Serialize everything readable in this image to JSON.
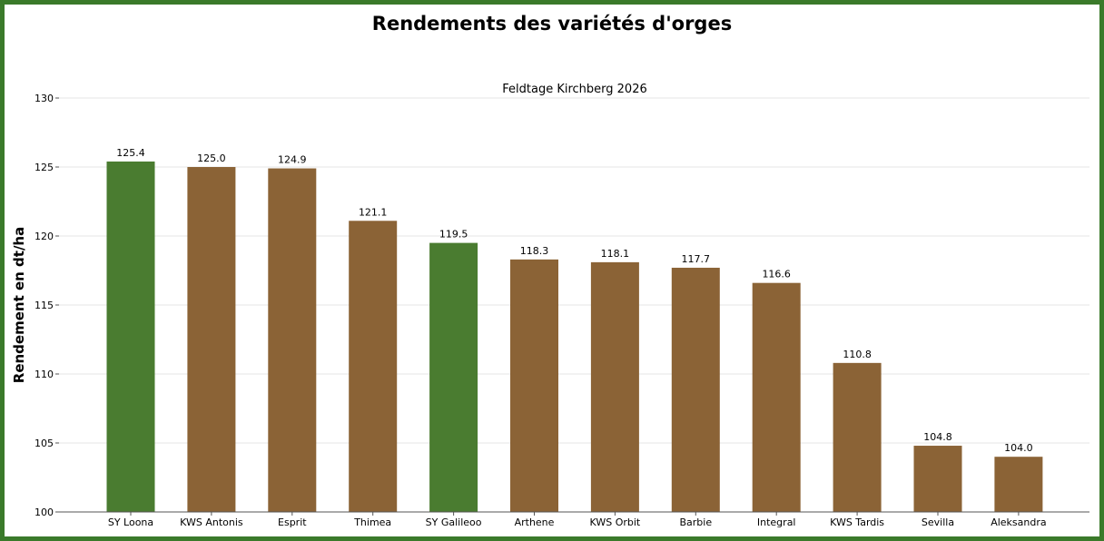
{
  "chart_data": {
    "type": "bar",
    "title": "Rendements des variétés d'orges",
    "subtitle": "Feldtage Kirchberg 2026",
    "xlabel": "",
    "ylabel": "Rendement en dt/ha",
    "ylim": [
      100,
      130
    ],
    "yticks": [
      100,
      105,
      110,
      115,
      120,
      125,
      130
    ],
    "grid": "horizontal",
    "categories": [
      "SY Loona",
      "KWS Antonis",
      "Esprit",
      "Thimea",
      "SY Galileoo",
      "Arthene",
      "KWS Orbit",
      "Barbie",
      "Integral",
      "KWS Tardis",
      "Sevilla",
      "Aleksandra"
    ],
    "values": [
      125.4,
      125.0,
      124.9,
      121.1,
      119.5,
      118.3,
      118.1,
      117.7,
      116.6,
      110.8,
      104.8,
      104.0
    ],
    "data_labels": [
      "125.4",
      "125.0",
      "124.9",
      "121.1",
      "119.5",
      "118.3",
      "118.1",
      "117.7",
      "116.6",
      "110.8",
      "104.8",
      "104.0"
    ],
    "bar_colors": [
      "#4a7c30",
      "#8b6336",
      "#8b6336",
      "#8b6336",
      "#4a7c30",
      "#8b6336",
      "#8b6336",
      "#8b6336",
      "#8b6336",
      "#8b6336",
      "#8b6336",
      "#8b6336"
    ]
  },
  "colors": {
    "frame_border": "#3a7a2a",
    "highlight_bar": "#4a7c30",
    "default_bar": "#8b6336",
    "grid": "#e6e6e6",
    "axis": "#555555"
  }
}
